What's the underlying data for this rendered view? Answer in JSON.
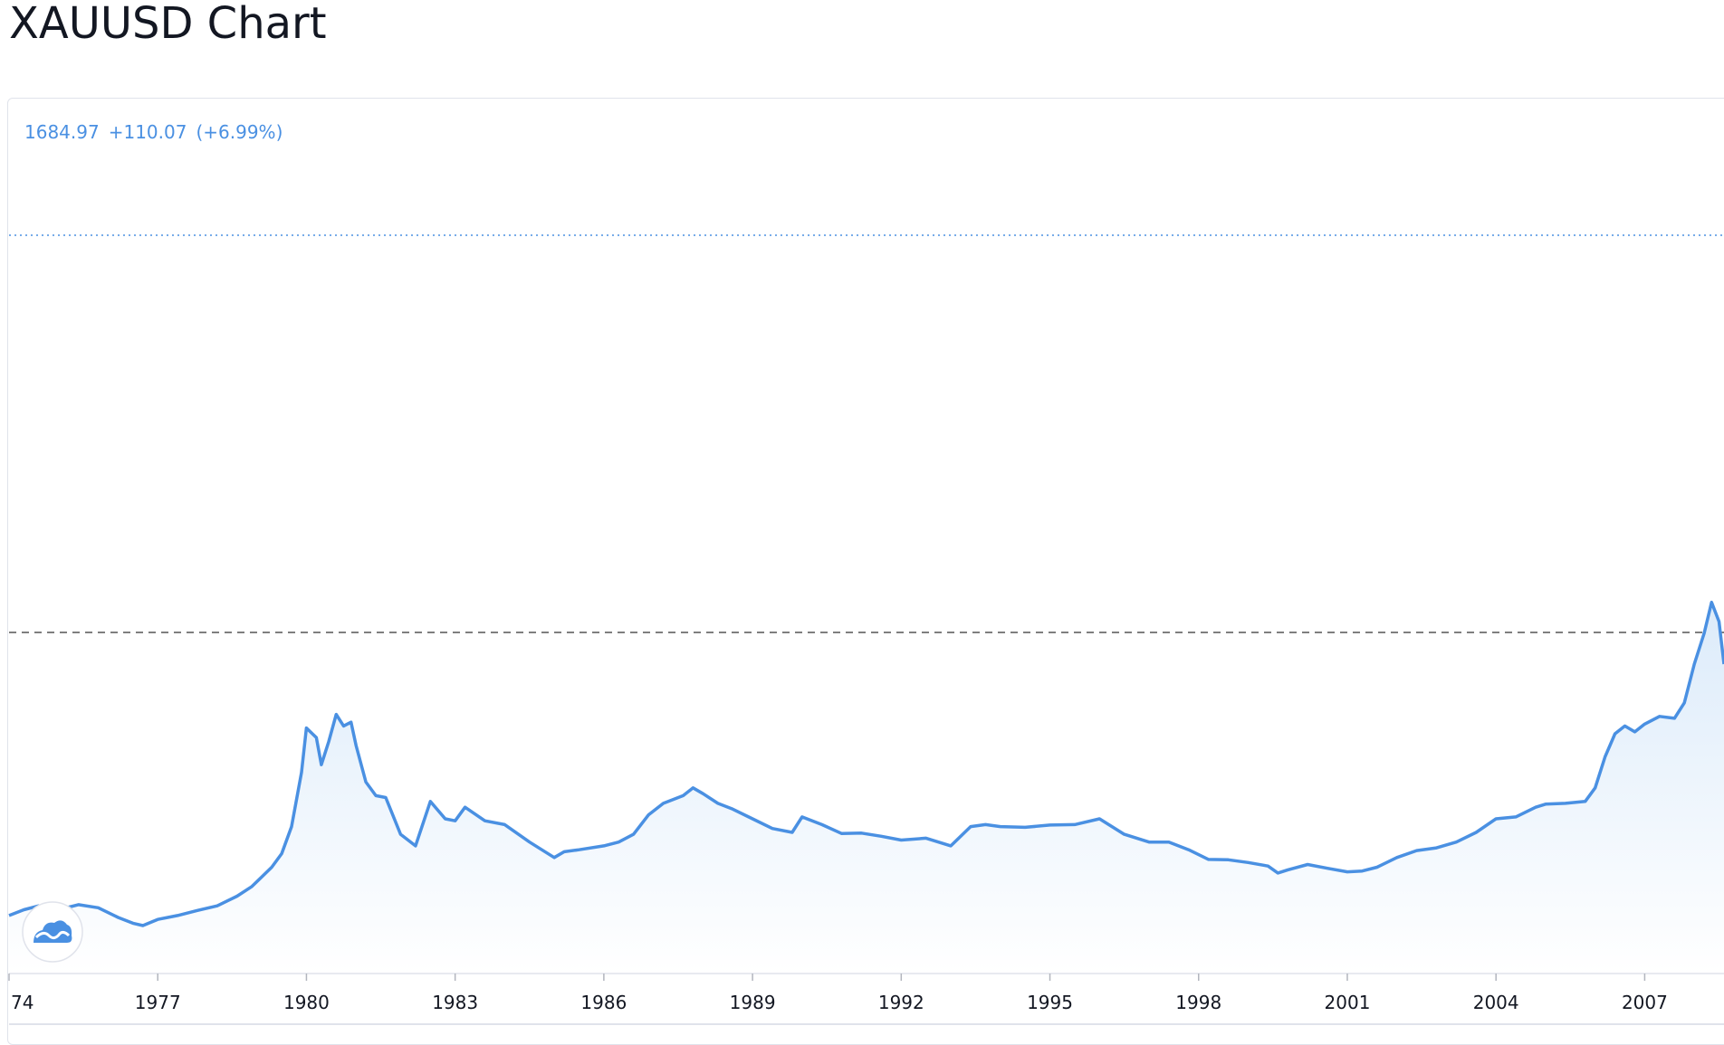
{
  "page": {
    "title": "XAUUSD Chart"
  },
  "quote": {
    "price": "1684.97",
    "change": "+110.07",
    "change_pct": "(+6.99%)"
  },
  "colors": {
    "line": "#4a90e2",
    "area_top": "#dcebfa",
    "dashed": "#555555",
    "dotted": "#4a90e2"
  },
  "icons": {
    "logo": "tradingview-cloud-logo"
  },
  "chart_data": {
    "type": "area",
    "title": "XAUUSD",
    "xlabel": "",
    "ylabel": "",
    "x_ticks": [
      "74",
      "1977",
      "1980",
      "1983",
      "1986",
      "1989",
      "1992",
      "1995",
      "1998",
      "2001",
      "2004",
      "2007"
    ],
    "xlim": [
      1974.0,
      2008.6
    ],
    "ylim": [
      0,
      1250
    ],
    "grid": false,
    "reference_lines": [
      {
        "style": "dotted",
        "value": 1684.97
      },
      {
        "style": "dashed",
        "value": 882
      }
    ],
    "series": [
      {
        "x": [
          1974.0,
          1974.3,
          1974.6,
          1975.0,
          1975.4,
          1975.8,
          1976.2,
          1976.5,
          1976.7,
          1977.0,
          1977.4,
          1977.8,
          1978.2,
          1978.6,
          1978.9,
          1979.1,
          1979.3,
          1979.5,
          1979.7,
          1979.9,
          1980.0,
          1980.2,
          1980.3,
          1980.45,
          1980.6,
          1980.75,
          1980.9,
          1981.0,
          1981.2,
          1981.4,
          1981.6,
          1981.9,
          1982.2,
          1982.5,
          1982.8,
          1983.0,
          1983.2,
          1983.6,
          1984.0,
          1984.5,
          1985.0,
          1985.2,
          1985.5,
          1986.0,
          1986.3,
          1986.6,
          1986.9,
          1987.2,
          1987.6,
          1987.8,
          1988.0,
          1988.3,
          1988.6,
          1989.0,
          1989.4,
          1989.8,
          1990.0,
          1990.4,
          1990.8,
          1991.2,
          1991.6,
          1992.0,
          1992.5,
          1993.0,
          1993.4,
          1993.7,
          1994.0,
          1994.5,
          1995.0,
          1995.5,
          1996.0,
          1996.5,
          1997.0,
          1997.4,
          1997.8,
          1998.2,
          1998.6,
          1999.0,
          1999.4,
          1999.6,
          1999.8,
          2000.2,
          2000.6,
          2001.0,
          2001.3,
          2001.6,
          2002.0,
          2002.4,
          2002.8,
          2003.2,
          2003.6,
          2004.0,
          2004.4,
          2004.8,
          2005.0,
          2005.4,
          2005.8,
          2006.0,
          2006.2,
          2006.4,
          2006.6,
          2006.8,
          2007.0,
          2007.3,
          2007.6,
          2007.8,
          2008.0,
          2008.2,
          2008.35,
          2008.5,
          2008.6
        ],
        "y": [
          150,
          165,
          175,
          165,
          178,
          170,
          145,
          130,
          124,
          140,
          150,
          163,
          175,
          200,
          225,
          250,
          275,
          310,
          380,
          520,
          635,
          610,
          540,
          600,
          670,
          640,
          650,
          590,
          495,
          460,
          455,
          360,
          330,
          445,
          400,
          395,
          430,
          395,
          385,
          340,
          300,
          315,
          320,
          330,
          340,
          360,
          410,
          440,
          460,
          480,
          465,
          440,
          425,
          400,
          375,
          365,
          405,
          385,
          362,
          363,
          355,
          345,
          350,
          330,
          380,
          385,
          380,
          378,
          384,
          385,
          400,
          360,
          340,
          340,
          320,
          295,
          294,
          287,
          278,
          260,
          268,
          282,
          272,
          263,
          265,
          275,
          300,
          318,
          325,
          340,
          365,
          400,
          405,
          430,
          438,
          440,
          445,
          480,
          560,
          620,
          640,
          625,
          645,
          665,
          660,
          700,
          800,
          880,
          960,
          910,
          800
        ]
      }
    ]
  }
}
